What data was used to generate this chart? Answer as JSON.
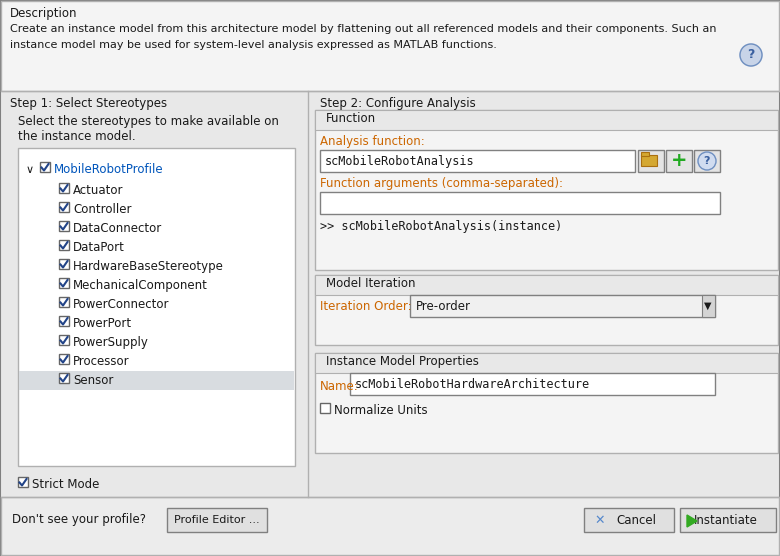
{
  "bg_color": "#e8e8e8",
  "white": "#ffffff",
  "panel_bg": "#f0f0f0",
  "section_header_bg": "#e0e0e0",
  "tree_box_bg": "#ffffff",
  "highlight_row_bg": "#d8dce0",
  "title_text": "Description",
  "desc_line1": "Create an instance model from this architecture model by flattening out all referenced models and their components. Such an",
  "desc_line2": "instance model may be used for system-level analysis expressed as MATLAB functions.",
  "step1_title": "Step 1: Select Stereotypes",
  "step2_title": "Step 2: Configure Analysis",
  "step1_desc1": "Select the stereotypes to make available on",
  "step1_desc2": "the instance model.",
  "tree_items": [
    {
      "label": "MobileRobotProfile",
      "level": 0,
      "checked": true,
      "color": "#0055bb"
    },
    {
      "label": "Actuator",
      "level": 1,
      "checked": true,
      "highlighted": false
    },
    {
      "label": "Controller",
      "level": 1,
      "checked": true,
      "highlighted": false
    },
    {
      "label": "DataConnector",
      "level": 1,
      "checked": true,
      "highlighted": false
    },
    {
      "label": "DataPort",
      "level": 1,
      "checked": true,
      "highlighted": false
    },
    {
      "label": "HardwareBaseStereotype",
      "level": 1,
      "checked": true,
      "highlighted": false
    },
    {
      "label": "MechanicalComponent",
      "level": 1,
      "checked": true,
      "highlighted": false
    },
    {
      "label": "PowerConnector",
      "level": 1,
      "checked": true,
      "highlighted": false
    },
    {
      "label": "PowerPort",
      "level": 1,
      "checked": true,
      "highlighted": false
    },
    {
      "label": "PowerSupply",
      "level": 1,
      "checked": true,
      "highlighted": false
    },
    {
      "label": "Processor",
      "level": 1,
      "checked": true,
      "highlighted": false
    },
    {
      "label": "Sensor",
      "level": 1,
      "checked": true,
      "highlighted": true
    }
  ],
  "strict_mode_checked": true,
  "strict_mode_label": "Strict Mode",
  "dont_see_text": "Don't see your profile?",
  "profile_editor_btn": "Profile Editor ...",
  "func_section_label": "Function",
  "analysis_func_label": "Analysis function:",
  "analysis_func_value": "scMobileRobotAnalysis",
  "func_args_label": "Function arguments (comma-separated):",
  "func_preview": ">> scMobileRobotAnalysis(instance)",
  "model_iter_label": "Model Iteration",
  "iter_order_label": "Iteration Order:",
  "iter_order_value": "Pre-order",
  "instance_props_label": "Instance Model Properties",
  "name_label": "Name:",
  "name_value": "scMobileRobotHardwareArchitecture",
  "normalize_label": "Normalize Units",
  "normalize_checked": false,
  "cancel_label": "Cancel",
  "instantiate_label": "Instantiate",
  "text_color": "#1a1a1a",
  "label_color": "#cc6600",
  "mono_color": "#000000",
  "blue_text": "#0055bb",
  "check_color": "#224488",
  "border_light": "#b0b0b0",
  "border_dark": "#808080"
}
